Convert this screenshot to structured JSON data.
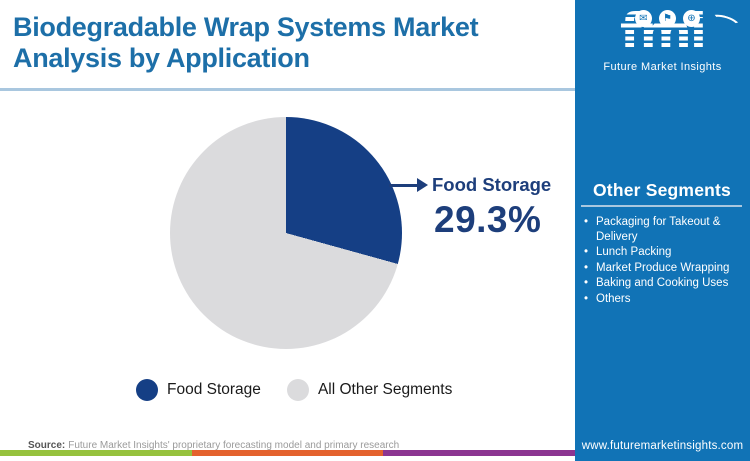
{
  "header": {
    "title": "Biodegradable Wrap Systems Market Analysis by Application"
  },
  "logo": {
    "text": "fmi",
    "tagline": "Future Market Insights",
    "icons": [
      {
        "name": "mail-icon",
        "glyph": "✉"
      },
      {
        "name": "flag-icon",
        "glyph": "⚑"
      },
      {
        "name": "globe-icon",
        "glyph": "⊕"
      }
    ]
  },
  "chart_data": {
    "type": "pie",
    "title": "Biodegradable Wrap Systems Market Analysis by Application",
    "start_angle_deg": 0,
    "direction": "clockwise",
    "legend_position": "bottom",
    "slices": [
      {
        "label": "Food Storage",
        "value": 29.3,
        "color": "#153F85"
      },
      {
        "label": "All Other Segments",
        "value": 70.7,
        "color": "#DBDBDD"
      }
    ],
    "callout": {
      "label": "Food Storage",
      "value_text": "29.3%"
    }
  },
  "sidebar": {
    "heading": "Other Segments",
    "items": [
      "Packaging for Takeout & Delivery",
      "Lunch Packing",
      "Market Produce Wrapping",
      "Baking and Cooking Uses",
      "Others"
    ],
    "website": "www.futuremarketinsights.com"
  },
  "footer": {
    "source_label": "Source:",
    "source_text": "Future Market Insights' proprietary forecasting model and primary research",
    "bar_colors": [
      "#96C23D",
      "#E4622D",
      "#8C3591"
    ]
  },
  "colors": {
    "title_text": "#1D6FA8",
    "sidebar_bg": "#1173B6",
    "callout": "#1D3E7B",
    "divider": "#A9C7DF",
    "legend_text": "#1A1A1A",
    "source_label": "#555555",
    "source_text": "#9A9A9A"
  }
}
